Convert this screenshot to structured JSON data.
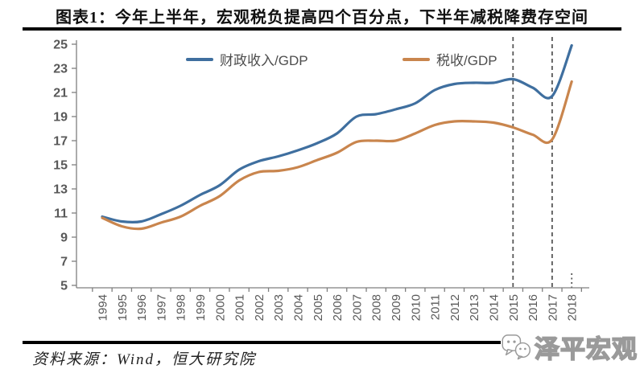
{
  "title": "图表1：今年上半年，宏观税负提高四个百分点，下半年减税降费存空间",
  "footer": {
    "source": "资料来源：Wind，恒大研究院",
    "brand": "泽平宏观"
  },
  "chart_data": {
    "type": "line",
    "title": "",
    "xlabel": "",
    "ylabel": "",
    "x": [
      1994,
      1995,
      1996,
      1997,
      1998,
      1999,
      2000,
      2001,
      2002,
      2003,
      2004,
      2005,
      2006,
      2007,
      2008,
      2009,
      2010,
      2011,
      2012,
      2013,
      2014,
      2015,
      2016,
      2017,
      2018
    ],
    "series": [
      {
        "name": "财政收入/GDP",
        "color": "#3f6f9f",
        "values": [
          10.7,
          10.3,
          10.3,
          10.9,
          11.6,
          12.5,
          13.3,
          14.6,
          15.3,
          15.7,
          16.2,
          16.8,
          17.6,
          19.0,
          19.2,
          19.6,
          20.1,
          21.2,
          21.7,
          21.8,
          21.8,
          22.1,
          21.4,
          20.7,
          24.9
        ]
      },
      {
        "name": "税收/GDP",
        "color": "#c9854d",
        "values": [
          10.6,
          9.9,
          9.7,
          10.2,
          10.7,
          11.6,
          12.4,
          13.7,
          14.4,
          14.5,
          14.8,
          15.4,
          16.0,
          16.9,
          17.0,
          17.0,
          17.6,
          18.3,
          18.6,
          18.6,
          18.5,
          18.1,
          17.5,
          17.1,
          21.9
        ]
      }
    ],
    "ylim": [
      5,
      25
    ],
    "ytick_step": 2,
    "grid": false,
    "legend_position": "top",
    "annotations": {
      "dashed_vlines": [
        2015,
        2017
      ],
      "dotted_tick": 2018
    },
    "axis_color": "#7f7f7f",
    "tick_label_color": "#595959"
  }
}
